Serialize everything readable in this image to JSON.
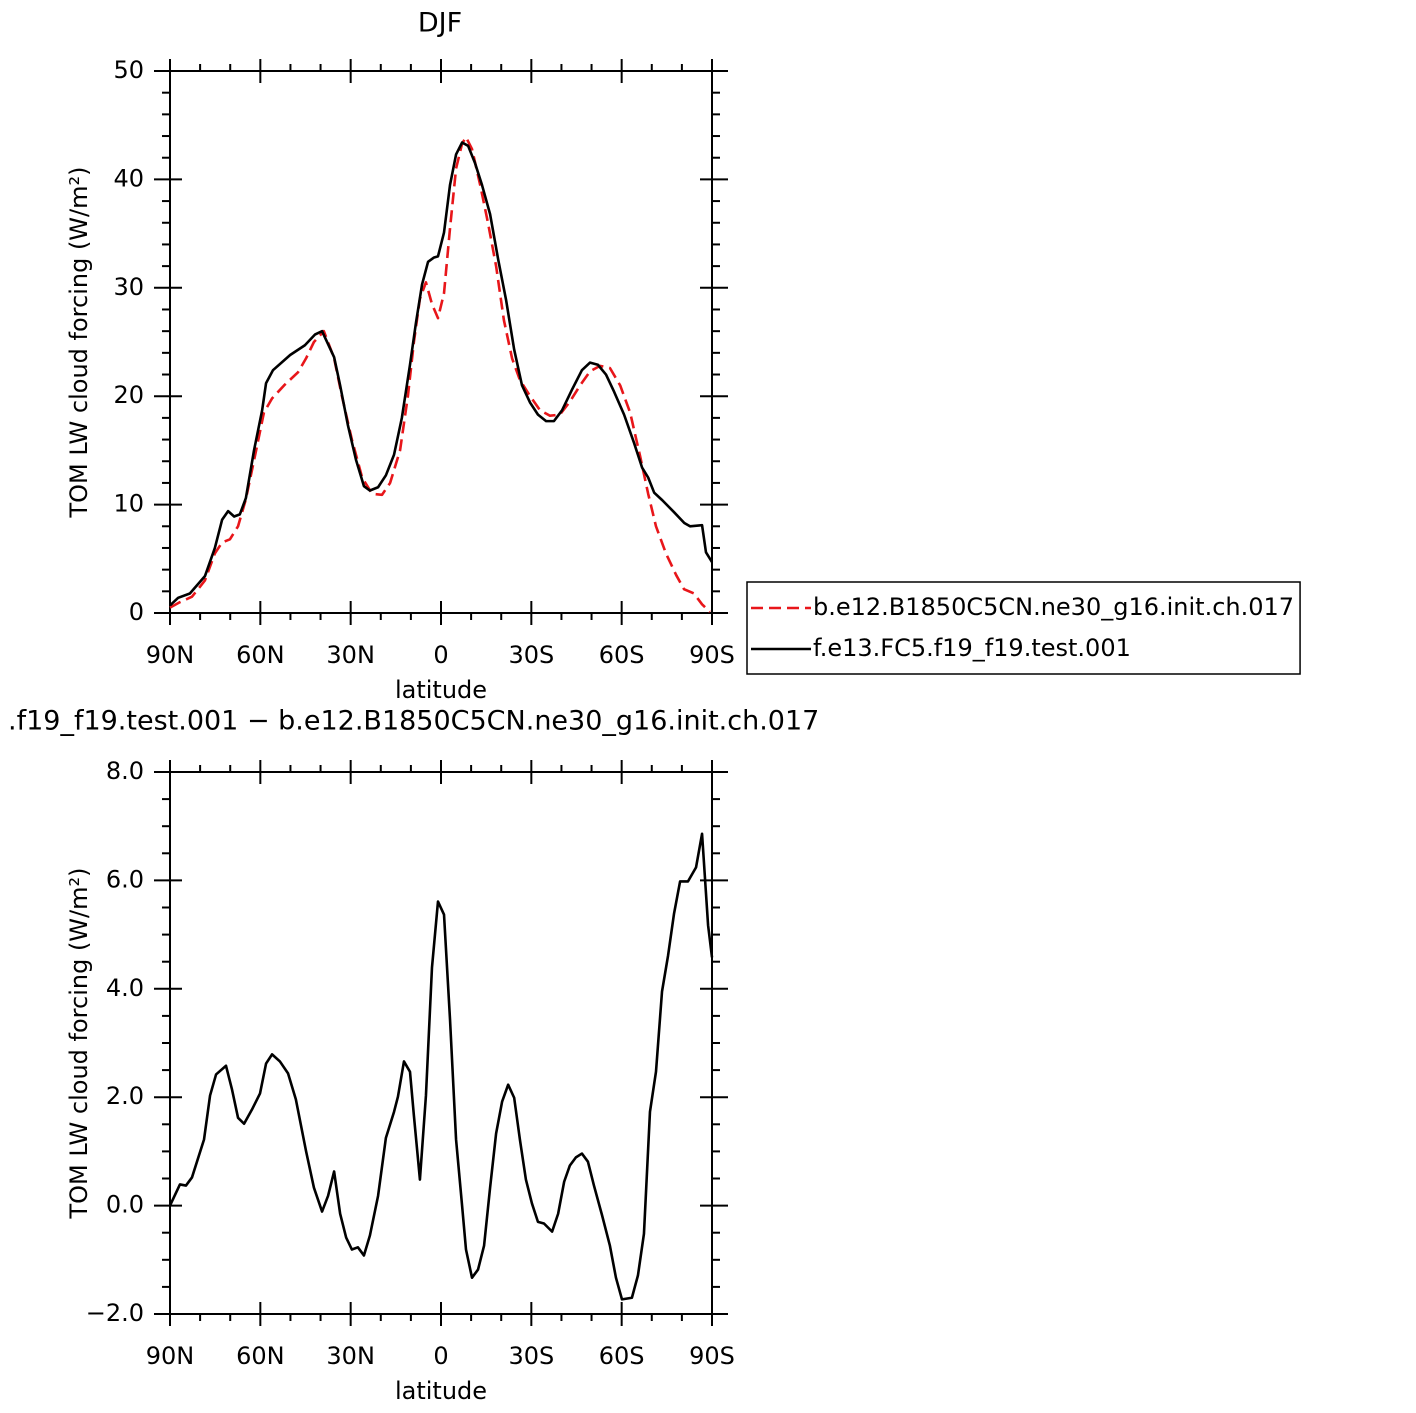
{
  "chart_data": [
    {
      "type": "line",
      "title": "DJF",
      "xlabel": "latitude",
      "ylabel": "TOM LW cloud forcing (W/m²)",
      "xlim": [
        90,
        -90
      ],
      "xticks": [
        {
          "value": 90,
          "label": "90N"
        },
        {
          "value": 60,
          "label": "60N"
        },
        {
          "value": 30,
          "label": "30N"
        },
        0,
        {
          "value": -30,
          "label": "30S"
        },
        {
          "value": -60,
          "label": "60S"
        },
        {
          "value": -90,
          "label": "90S"
        }
      ],
      "ylim": [
        0,
        50
      ],
      "yticks": [
        0,
        10,
        20,
        30,
        40,
        50
      ],
      "legend": "right",
      "series": [
        {
          "name": "b.e12.B1850C5CN.ne30_g16.init.ch.017",
          "color": "#e8161a",
          "dash": true,
          "x": [
            90,
            86.7,
            82.7,
            78.4,
            75.1,
            72.7,
            70.1,
            67.4,
            64.8,
            61.4,
            58.8,
            56.1,
            52.1,
            47.5,
            44.8,
            42.2,
            38.9,
            35.5,
            32.9,
            29.6,
            26.2,
            22.9,
            19.6,
            16.9,
            13.6,
            11.0,
            9.0,
            7.0,
            5.0,
            3.0,
            1.0,
            -1.0,
            -3.0,
            -5.0,
            -7.0,
            -8.3,
            -10.3,
            -13.0,
            -15.6,
            -18.3,
            -20.9,
            -23.6,
            -26.2,
            -29.6,
            -32.9,
            -36.2,
            -39.5,
            -42.8,
            -46.2,
            -49.5,
            -52.8,
            -56.1,
            -59.5,
            -62.8,
            -66.1,
            -68.8,
            -71.4,
            -74.7,
            -78.1,
            -80.7,
            -84.0,
            -86.7,
            -89.3
          ],
          "values": [
            0.5,
            1.0,
            1.5,
            3.0,
            5.5,
            6.5,
            6.8,
            8.0,
            10.5,
            15.0,
            18.5,
            19.8,
            21.0,
            22.2,
            23.5,
            25.0,
            26.0,
            23.5,
            20.0,
            16.0,
            12.5,
            11.0,
            10.9,
            12.0,
            15.0,
            20.0,
            25.0,
            29.0,
            30.5,
            28.5,
            27.2,
            29.5,
            35.5,
            41.0,
            43.3,
            43.9,
            42.8,
            39.5,
            36.0,
            32.0,
            27.0,
            23.5,
            21.5,
            20.0,
            18.7,
            18.2,
            18.3,
            19.5,
            21.0,
            22.3,
            22.8,
            22.6,
            21.0,
            18.5,
            14.5,
            11.0,
            8.0,
            5.5,
            3.5,
            2.2,
            1.8,
            0.8,
            0.1
          ]
        },
        {
          "name": "f.e13.FC5.f19_f19.test.001",
          "color": "#000000",
          "dash": false,
          "x": [
            90,
            87.3,
            83.4,
            78.4,
            75.1,
            72.7,
            70.7,
            68.7,
            66.8,
            64.8,
            62.1,
            59.4,
            58.1,
            55.8,
            50.1,
            45.2,
            41.8,
            39.5,
            35.5,
            33.5,
            30.9,
            28.2,
            25.6,
            23.6,
            20.9,
            18.3,
            15.6,
            13.0,
            10.3,
            8.3,
            6.3,
            4.3,
            2.3,
            1.0,
            -1.0,
            -3.0,
            -5.0,
            -7.0,
            -9.0,
            -11.3,
            -13.6,
            -16.3,
            -19.0,
            -21.6,
            -24.3,
            -26.9,
            -29.6,
            -32.2,
            -34.9,
            -37.5,
            -40.2,
            -43.5,
            -46.8,
            -49.5,
            -52.1,
            -54.8,
            -57.5,
            -60.8,
            -64.1,
            -66.8,
            -68.8,
            -70.8,
            -73.5,
            -77.4,
            -80.8,
            -82.7,
            -86.7,
            -88.0,
            -90
          ],
          "values": [
            0.7,
            1.4,
            1.8,
            3.4,
            6.0,
            8.6,
            9.4,
            8.9,
            9.1,
            10.6,
            15.0,
            18.7,
            21.2,
            22.4,
            23.8,
            24.7,
            25.7,
            26.0,
            23.6,
            21.0,
            17.3,
            14.1,
            11.7,
            11.3,
            11.6,
            12.7,
            14.6,
            18.0,
            22.9,
            26.8,
            30.3,
            32.4,
            32.8,
            32.9,
            35.1,
            39.5,
            42.3,
            43.4,
            43.1,
            41.5,
            39.5,
            36.8,
            32.6,
            28.9,
            24.3,
            21.0,
            19.4,
            18.3,
            17.7,
            17.7,
            18.7,
            20.6,
            22.4,
            23.1,
            22.9,
            22.0,
            20.4,
            18.3,
            15.7,
            13.4,
            12.5,
            11.1,
            10.4,
            9.3,
            8.3,
            8.0,
            8.1,
            5.6,
            4.7
          ]
        }
      ]
    },
    {
      "type": "line",
      "title": ".f19_f19.test.001 − b.e12.B1850C5CN.ne30_g16.init.ch.017",
      "xlabel": "latitude",
      "ylabel": "TOM LW cloud forcing (W/m²)",
      "xlim": [
        90,
        -90
      ],
      "xticks": [
        {
          "value": 90,
          "label": "90N"
        },
        {
          "value": 60,
          "label": "60N"
        },
        {
          "value": 30,
          "label": "30N"
        },
        0,
        {
          "value": -30,
          "label": "30S"
        },
        {
          "value": -60,
          "label": "60S"
        },
        {
          "value": -90,
          "label": "90S"
        }
      ],
      "ylim": [
        -2,
        8
      ],
      "yticks": [
        {
          "value": -2,
          "label": "−2.0"
        },
        {
          "value": 0,
          "label": "0.0"
        },
        {
          "value": 2,
          "label": "2.0"
        },
        {
          "value": 4,
          "label": "4.0"
        },
        {
          "value": 6,
          "label": "6.0"
        },
        {
          "value": 8,
          "label": "8.0"
        }
      ],
      "series": [
        {
          "color": "#000000",
          "dash": false,
          "x": [
            90,
            86.7,
            84.7,
            82.7,
            78.7,
            76.7,
            74.7,
            71.4,
            69.4,
            67.4,
            65.4,
            62.8,
            60.1,
            58.1,
            56.1,
            53.5,
            50.8,
            48.2,
            44.8,
            42.2,
            39.5,
            37.5,
            35.5,
            33.5,
            31.5,
            29.6,
            27.6,
            25.6,
            23.6,
            20.9,
            18.3,
            15.6,
            14.3,
            12.3,
            10.3,
            9.0,
            7.0,
            5.0,
            3.0,
            1.0,
            -1.0,
            -3.0,
            -5.0,
            -7.0,
            -8.3,
            -10.3,
            -12.3,
            -14.3,
            -16.3,
            -18.3,
            -20.3,
            -22.3,
            -24.3,
            -26.2,
            -28.2,
            -30.2,
            -32.2,
            -34.2,
            -36.9,
            -38.9,
            -40.9,
            -42.8,
            -44.8,
            -46.8,
            -48.8,
            -50.8,
            -53.5,
            -56.1,
            -58.1,
            -60.1,
            -63.4,
            -65.4,
            -67.4,
            -69.4,
            -71.4,
            -73.4,
            -75.4,
            -77.4,
            -79.4,
            -82.0,
            -84.7,
            -86.7,
            -88.7,
            -90
          ],
          "values": [
            0.0,
            0.39,
            0.37,
            0.52,
            1.22,
            2.03,
            2.42,
            2.58,
            2.14,
            1.62,
            1.51,
            1.77,
            2.07,
            2.62,
            2.79,
            2.66,
            2.44,
            1.96,
            1.0,
            0.33,
            -0.11,
            0.18,
            0.63,
            -0.15,
            -0.59,
            -0.81,
            -0.77,
            -0.92,
            -0.55,
            0.18,
            1.25,
            1.73,
            2.01,
            2.66,
            2.47,
            1.66,
            0.48,
            2.03,
            4.39,
            5.61,
            5.37,
            3.43,
            1.22,
            0.0,
            -0.81,
            -1.33,
            -1.18,
            -0.74,
            0.33,
            1.33,
            1.92,
            2.23,
            1.99,
            1.22,
            0.48,
            0.04,
            -0.3,
            -0.33,
            -0.48,
            -0.15,
            0.44,
            0.74,
            0.89,
            0.96,
            0.81,
            0.37,
            -0.18,
            -0.74,
            -1.33,
            -1.73,
            -1.7,
            -1.29,
            -0.52,
            1.73,
            2.47,
            3.95,
            4.61,
            5.39,
            5.98,
            5.98,
            6.24,
            6.86,
            5.17,
            4.58
          ]
        }
      ]
    }
  ]
}
